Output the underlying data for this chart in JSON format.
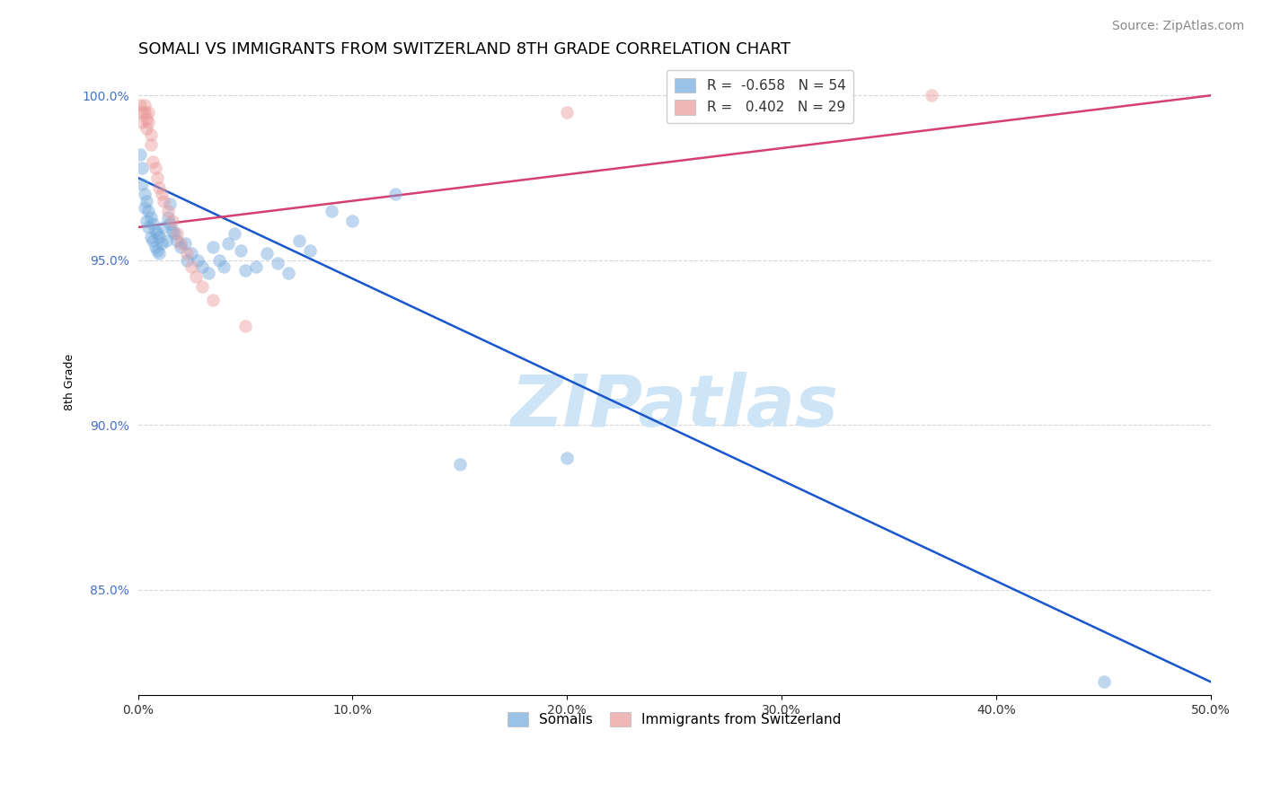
{
  "title": "SOMALI VS IMMIGRANTS FROM SWITZERLAND 8TH GRADE CORRELATION CHART",
  "ylabel": "8th Grade",
  "xlabel": "",
  "source": "Source: ZipAtlas.com",
  "xlim": [
    0.0,
    0.5
  ],
  "ylim": [
    0.818,
    1.008
  ],
  "xticks": [
    0.0,
    0.1,
    0.2,
    0.3,
    0.4,
    0.5
  ],
  "xticklabels": [
    "0.0%",
    "10.0%",
    "20.0%",
    "30.0%",
    "40.0%",
    "50.0%"
  ],
  "yticks": [
    0.85,
    0.9,
    0.95,
    1.0
  ],
  "yticklabels": [
    "85.0%",
    "90.0%",
    "95.0%",
    "100.0%"
  ],
  "blue_color": "#6fa8dc",
  "pink_color": "#ea9999",
  "blue_line_color": "#1a56cc",
  "pink_line_color": "#d44070",
  "watermark": "ZIPatlas",
  "watermark_color": "#cde5f7",
  "blue_scatter_x": [
    0.001,
    0.002,
    0.002,
    0.003,
    0.003,
    0.004,
    0.004,
    0.005,
    0.005,
    0.006,
    0.006,
    0.007,
    0.007,
    0.008,
    0.008,
    0.009,
    0.009,
    0.01,
    0.01,
    0.011,
    0.012,
    0.013,
    0.014,
    0.015,
    0.015,
    0.016,
    0.017,
    0.018,
    0.02,
    0.022,
    0.023,
    0.025,
    0.028,
    0.03,
    0.033,
    0.035,
    0.038,
    0.04,
    0.042,
    0.045,
    0.048,
    0.05,
    0.055,
    0.06,
    0.065,
    0.07,
    0.075,
    0.08,
    0.09,
    0.1,
    0.12,
    0.15,
    0.2,
    0.45
  ],
  "blue_scatter_y": [
    0.982,
    0.978,
    0.973,
    0.97,
    0.966,
    0.968,
    0.962,
    0.965,
    0.96,
    0.963,
    0.957,
    0.961,
    0.956,
    0.959,
    0.954,
    0.958,
    0.953,
    0.957,
    0.952,
    0.955,
    0.96,
    0.956,
    0.963,
    0.967,
    0.961,
    0.959,
    0.958,
    0.956,
    0.954,
    0.955,
    0.95,
    0.952,
    0.95,
    0.948,
    0.946,
    0.954,
    0.95,
    0.948,
    0.955,
    0.958,
    0.953,
    0.947,
    0.948,
    0.952,
    0.949,
    0.946,
    0.956,
    0.953,
    0.965,
    0.962,
    0.97,
    0.888,
    0.89,
    0.822
  ],
  "pink_scatter_x": [
    0.001,
    0.002,
    0.002,
    0.003,
    0.003,
    0.004,
    0.004,
    0.005,
    0.005,
    0.006,
    0.006,
    0.007,
    0.008,
    0.009,
    0.01,
    0.011,
    0.012,
    0.014,
    0.016,
    0.018,
    0.02,
    0.023,
    0.025,
    0.027,
    0.03,
    0.035,
    0.05,
    0.2,
    0.37
  ],
  "pink_scatter_y": [
    0.997,
    0.995,
    0.992,
    0.997,
    0.995,
    0.993,
    0.99,
    0.995,
    0.992,
    0.988,
    0.985,
    0.98,
    0.978,
    0.975,
    0.972,
    0.97,
    0.968,
    0.965,
    0.962,
    0.958,
    0.955,
    0.952,
    0.948,
    0.945,
    0.942,
    0.938,
    0.93,
    0.995,
    1.0
  ],
  "blue_line_x": [
    0.0,
    0.5
  ],
  "blue_line_y": [
    0.975,
    0.822
  ],
  "pink_line_x": [
    0.0,
    0.5
  ],
  "pink_line_y": [
    0.96,
    1.0
  ],
  "legend_blue_R": "-0.658",
  "legend_blue_N": "54",
  "legend_pink_R": "0.402",
  "legend_pink_N": "29",
  "somalis_label": "Somalis",
  "swiss_label": "Immigrants from Switzerland",
  "grid_color": "#cccccc",
  "bg_color": "#ffffff",
  "title_fontsize": 13,
  "axis_label_fontsize": 9,
  "tick_fontsize": 10,
  "source_fontsize": 10,
  "legend_fontsize": 11,
  "scatter_size": 110,
  "scatter_alpha": 0.45
}
